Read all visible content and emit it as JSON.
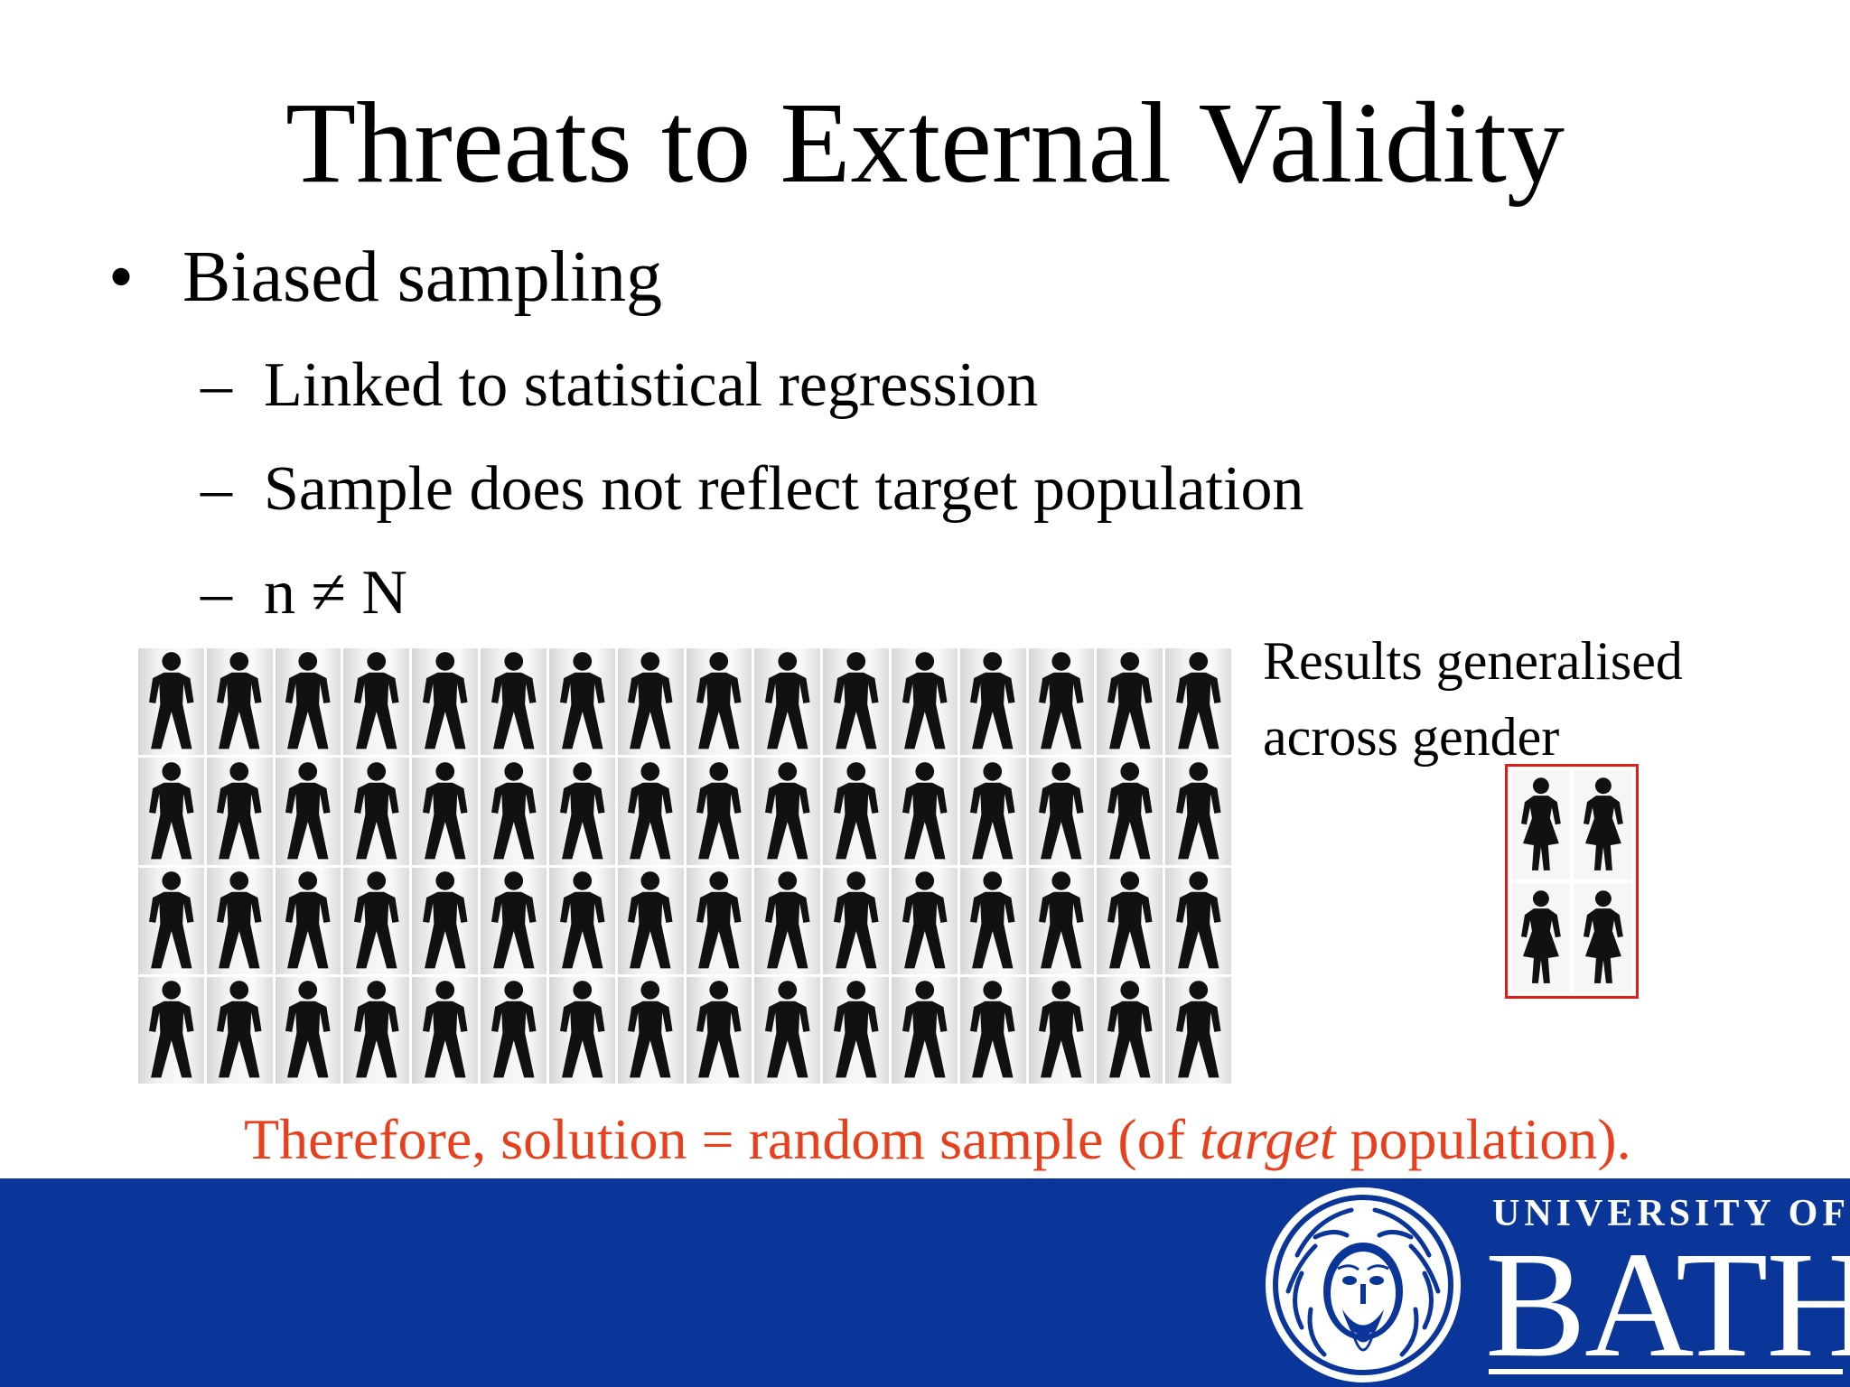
{
  "slide": {
    "title": "Threats to External Validity",
    "bullet": {
      "symbol": "•",
      "text": "Biased sampling"
    },
    "subbullets": [
      {
        "dash": "–",
        "text": "Linked to statistical regression"
      },
      {
        "dash": "–",
        "text": "Sample does not reflect target population"
      },
      {
        "dash": "–",
        "text": "n ≠ N"
      }
    ],
    "figure": {
      "men_icon": "male-figure-icon",
      "men_rows": 4,
      "men_columns": 16,
      "women_icon": "female-figure-icon",
      "women_count": 4,
      "highlight_color": "#e21b1b",
      "caption_line1": "Results generalised",
      "caption_line2": "across gender"
    },
    "conclusion": {
      "before": "Therefore, solution = random sample (of ",
      "emphasis": "target",
      "after": " population).",
      "color": "#e8401c"
    }
  },
  "footer": {
    "background_color": "#0b3699",
    "seal_icon": "university-seal-icon",
    "university_of": "UNIVERSITY OF",
    "bath": "BATH"
  }
}
